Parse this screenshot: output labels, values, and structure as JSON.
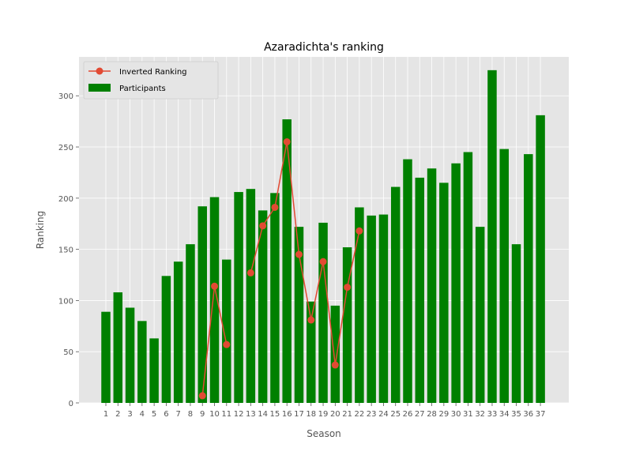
{
  "chart_data": {
    "type": "bar",
    "title": "Azaradichta's ranking",
    "xlabel": "Season",
    "ylabel": "Ranking",
    "ylim": [
      0,
      338
    ],
    "yticks": [
      0,
      50,
      100,
      150,
      200,
      250,
      300
    ],
    "grid": true,
    "legend_position": "top-left",
    "categories": [
      "1",
      "2",
      "3",
      "4",
      "5",
      "6",
      "7",
      "8",
      "9",
      "10",
      "11",
      "12",
      "13",
      "14",
      "15",
      "16",
      "17",
      "18",
      "19",
      "20",
      "21",
      "22",
      "23",
      "24",
      "25",
      "26",
      "27",
      "28",
      "29",
      "30",
      "31",
      "32",
      "33",
      "34",
      "35",
      "36",
      "37"
    ],
    "series": [
      {
        "name": "Participants",
        "kind": "bar",
        "color": "#008000",
        "values": [
          89,
          108,
          93,
          80,
          63,
          124,
          138,
          155,
          192,
          201,
          140,
          206,
          209,
          188,
          205,
          277,
          172,
          99,
          176,
          95,
          152,
          191,
          183,
          184,
          211,
          238,
          220,
          229,
          215,
          234,
          245,
          172,
          325,
          248,
          155,
          243,
          281
        ]
      },
      {
        "name": "Inverted Ranking",
        "kind": "line",
        "color": "#E24A33",
        "values": [
          null,
          null,
          null,
          null,
          null,
          null,
          null,
          null,
          7,
          114,
          57,
          null,
          127,
          173,
          191,
          255,
          145,
          81,
          138,
          37,
          113,
          168,
          null,
          null,
          null,
          null,
          null,
          null,
          null,
          null,
          null,
          null,
          null,
          null,
          null,
          null,
          null
        ]
      }
    ]
  },
  "colors": {
    "plot_background": "#E5E5E5",
    "grid": "#FFFFFF",
    "bar": "#008000",
    "line": "#E24A33"
  }
}
